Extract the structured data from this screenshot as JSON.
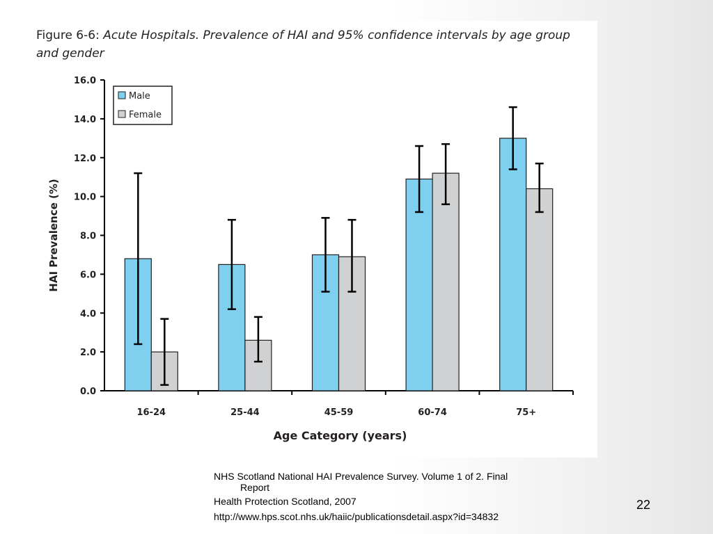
{
  "figure": {
    "label": "Figure 6-6:",
    "title": "Acute Hospitals. Prevalence of HAI and 95% confidence intervals by age group and gender"
  },
  "chart_data": {
    "type": "bar",
    "title": "Figure 6-6: Acute Hospitals. Prevalence of HAI and 95% confidence intervals by age group and gender",
    "xlabel": "Age Category (years)",
    "ylabel": "HAI Prevalence (%)",
    "ylim": [
      0,
      16
    ],
    "yticks": [
      "0.0",
      "2.0",
      "4.0",
      "6.0",
      "8.0",
      "10.0",
      "12.0",
      "14.0",
      "16.0"
    ],
    "categories": [
      "16-24",
      "25-44",
      "45-59",
      "60-74",
      "75+"
    ],
    "grid": false,
    "legend_position": "top-left",
    "series": [
      {
        "name": "Male",
        "color": "#7fd0ee",
        "values": [
          6.8,
          6.5,
          7.0,
          10.9,
          13.0
        ],
        "ci_low": [
          2.4,
          4.2,
          5.1,
          9.2,
          11.4
        ],
        "ci_high": [
          11.2,
          8.8,
          8.9,
          12.6,
          14.6
        ]
      },
      {
        "name": "Female",
        "color": "#d0d1d3",
        "values": [
          2.0,
          2.6,
          6.9,
          11.2,
          10.4
        ],
        "ci_low": [
          0.3,
          1.5,
          5.1,
          9.6,
          9.2
        ],
        "ci_high": [
          3.7,
          3.8,
          8.8,
          12.7,
          11.7
        ]
      }
    ]
  },
  "caption": {
    "line1": "NHS Scotland National HAI Prevalence Survey. Volume 1 of 2. Final",
    "line1_cont": "Report",
    "line2": "Health Protection Scotland, 2007",
    "line3": "http://www.hps.scot.nhs.uk/haiic/publicationsdetail.aspx?id=34832"
  },
  "slide_number": "22"
}
